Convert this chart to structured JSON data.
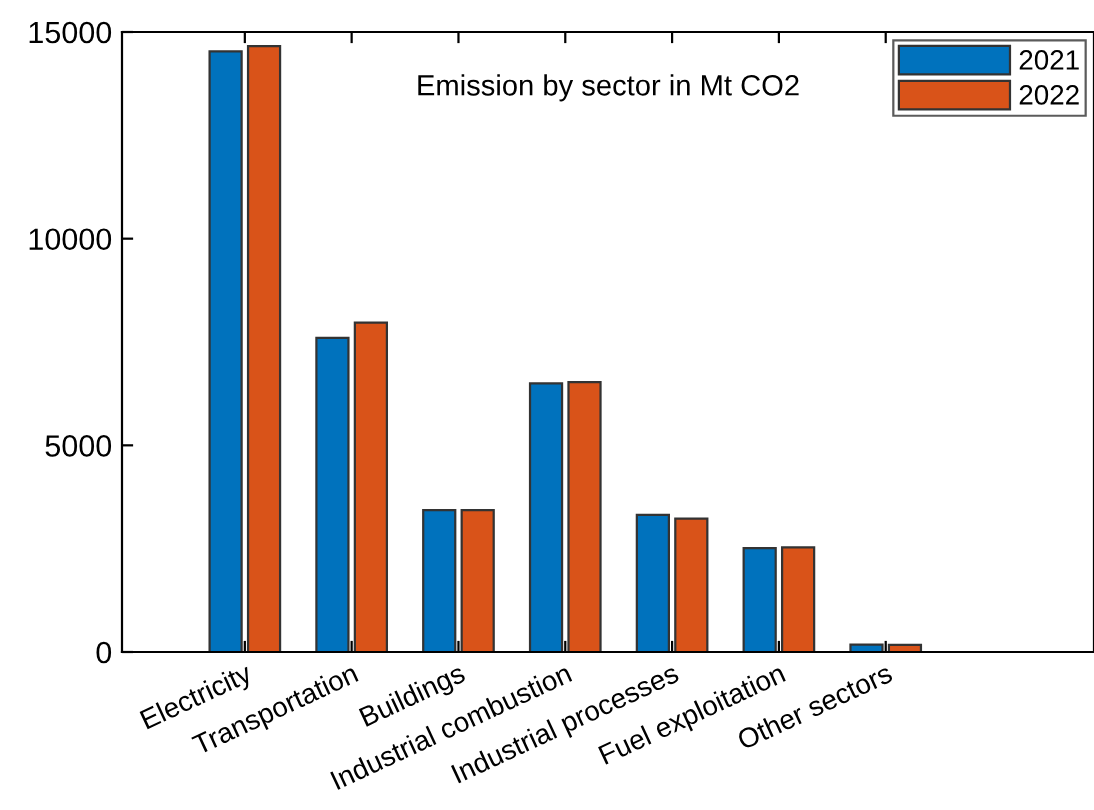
{
  "chart_data": {
    "type": "bar",
    "title": "Emission by sector in Mt CO2",
    "categories": [
      "Electricity",
      "Transportation",
      "Buildings",
      "Industrial combustion",
      "Industrial processes",
      "Fuel exploitation",
      "Other sectors"
    ],
    "series": [
      {
        "name": "2021",
        "color": "#0072bd",
        "values": [
          14530,
          7600,
          3435,
          6500,
          3320,
          2515,
          180
        ]
      },
      {
        "name": "2022",
        "color": "#d95319",
        "values": [
          14660,
          7970,
          3430,
          6530,
          3225,
          2530,
          170
        ]
      }
    ],
    "ylim": [
      0,
      15000
    ],
    "yticks": [
      0,
      5000,
      10000,
      15000
    ],
    "grid": false,
    "legend": "top right"
  }
}
